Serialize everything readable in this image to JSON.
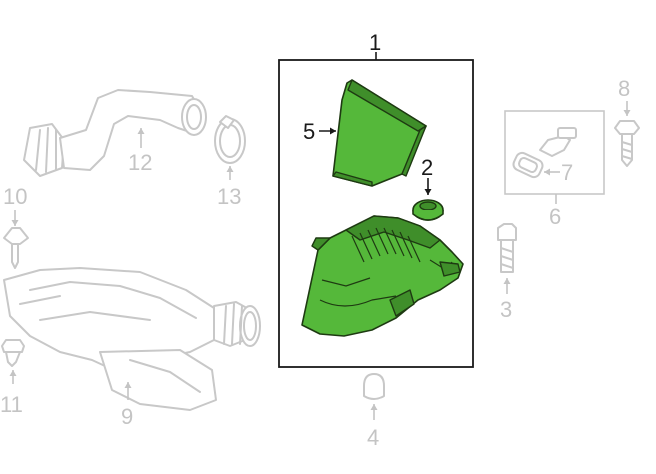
{
  "callouts": {
    "c1": "1",
    "c2": "2",
    "c3": "3",
    "c4": "4",
    "c5": "5",
    "c6": "6",
    "c7": "7",
    "c8": "8",
    "c9": "9",
    "c10": "10",
    "c11": "11",
    "c12": "12",
    "c13": "13"
  },
  "colors": {
    "highlight": "#55b83a",
    "ghost": "#c8c8c8",
    "frame": "#1a1a1a"
  }
}
